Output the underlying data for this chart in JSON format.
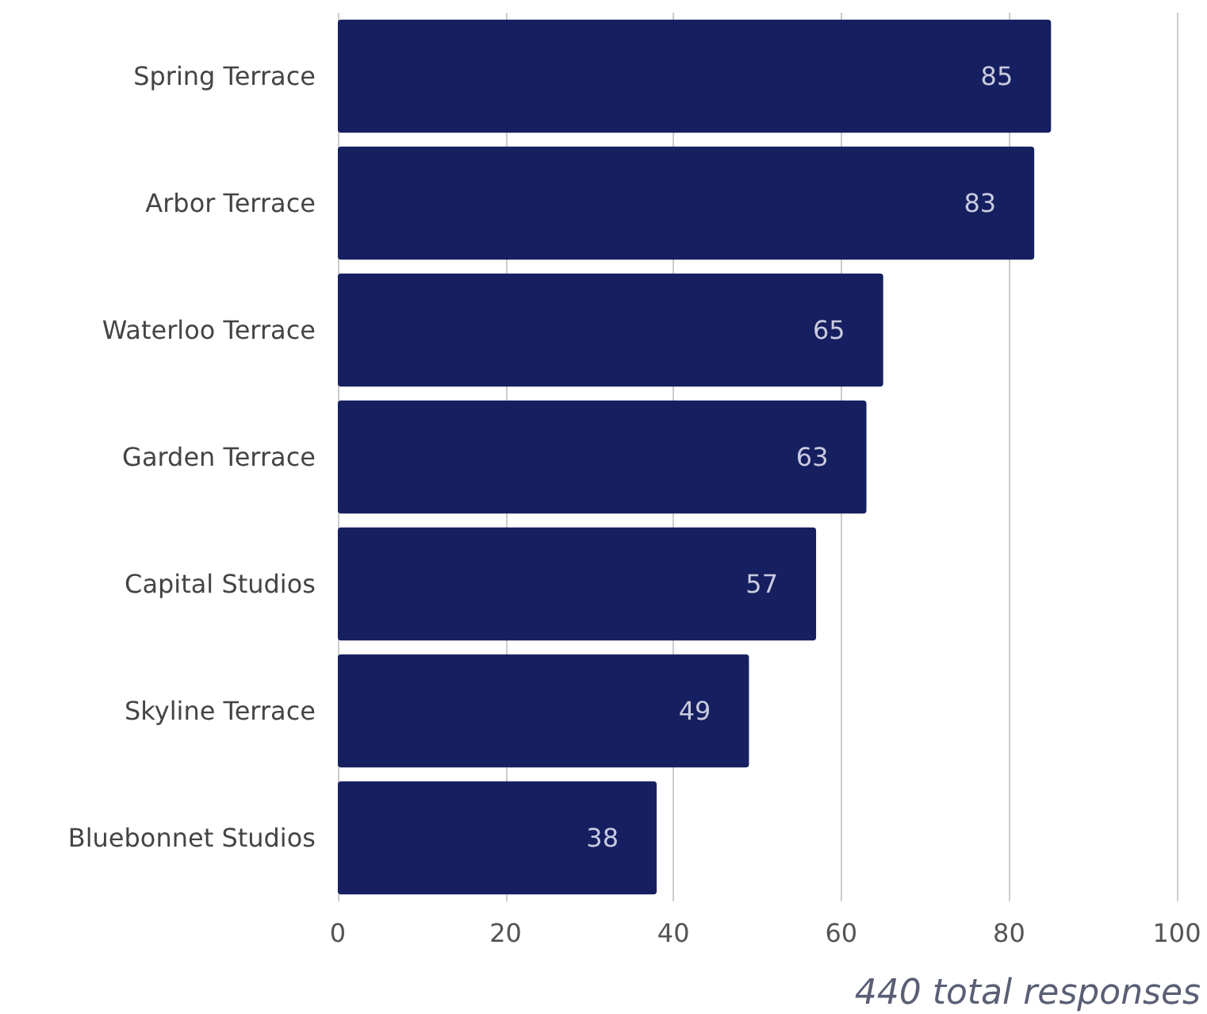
{
  "chart_data": {
    "type": "bar",
    "orientation": "horizontal",
    "categories": [
      "Spring Terrace",
      "Arbor Terrace",
      "Waterloo Terrace",
      "Garden Terrace",
      "Capital Studios",
      "Skyline Terrace",
      "Bluebonnet Studios"
    ],
    "values": [
      85,
      83,
      65,
      63,
      57,
      49,
      38
    ],
    "color": "#161f5f",
    "xlim": [
      0,
      100
    ],
    "xticks": [
      0,
      20,
      40,
      60,
      80,
      100
    ],
    "grid": "x",
    "data_labels": true,
    "annotations": [
      "440 total responses"
    ]
  }
}
